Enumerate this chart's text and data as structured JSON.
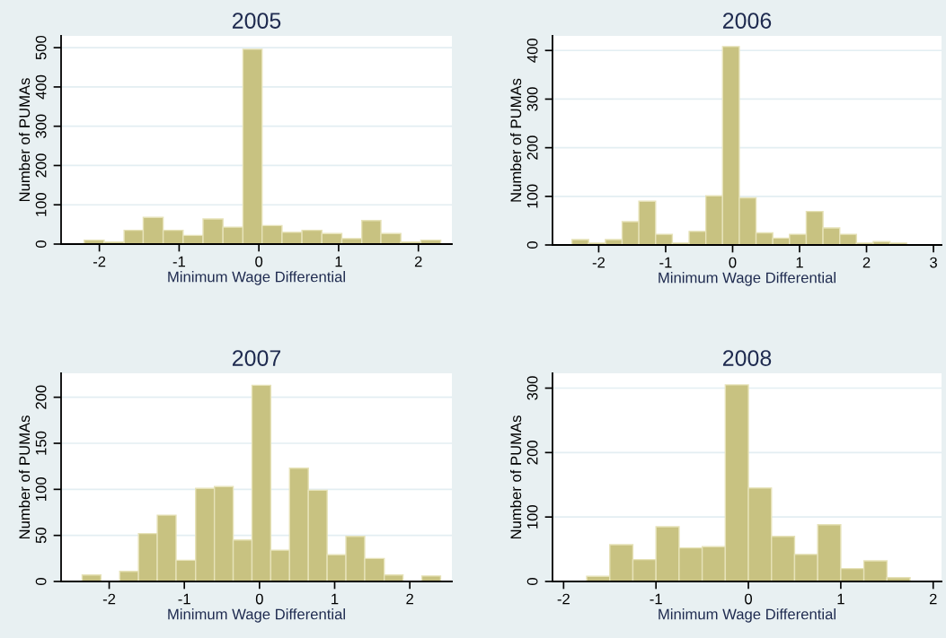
{
  "chart_data": [
    {
      "type": "histogram",
      "title": "2005",
      "xlabel": "Minimum Wage Differential",
      "ylabel": "Number of PUMAs",
      "color": "#c8c281",
      "grid": "y",
      "bins": [
        -2.19,
        -1.94,
        -1.69,
        -1.45,
        -1.2,
        -0.95,
        -0.7,
        -0.45,
        -0.2,
        0.04,
        0.29,
        0.54,
        0.79,
        1.04,
        1.29,
        1.53,
        1.78,
        2.03,
        2.28
      ],
      "values": [
        10,
        5,
        35,
        68,
        35,
        22,
        64,
        43,
        496,
        47,
        30,
        35,
        27,
        14,
        60,
        27,
        5,
        10
      ],
      "xlim": [
        -2.48,
        2.42
      ],
      "ylim": [
        0,
        530
      ],
      "xticks": [
        -2,
        -1,
        0,
        1,
        2
      ],
      "yticks": [
        0,
        100,
        200,
        300,
        400,
        500
      ]
    },
    {
      "type": "histogram",
      "title": "2006",
      "xlabel": "Minimum Wage Differential",
      "ylabel": "Number of PUMAs",
      "color": "#c8c281",
      "grid": "y",
      "bins": [
        -2.4,
        -2.15,
        -1.9,
        -1.65,
        -1.4,
        -1.15,
        -0.9,
        -0.65,
        -0.4,
        -0.15,
        0.1,
        0.35,
        0.6,
        0.85,
        1.1,
        1.35,
        1.6,
        1.85,
        2.1,
        2.35,
        2.6
      ],
      "values": [
        11,
        4,
        11,
        48,
        90,
        22,
        4,
        28,
        101,
        408,
        97,
        25,
        14,
        22,
        69,
        35,
        22,
        4,
        7,
        4
      ],
      "xlim": [
        -2.69,
        3.12
      ],
      "ylim": [
        0,
        430
      ],
      "xticks": [
        -2,
        -1,
        0,
        1,
        2,
        3
      ],
      "yticks": [
        0,
        100,
        200,
        300,
        400
      ]
    },
    {
      "type": "histogram",
      "title": "2007",
      "xlabel": "Minimum Wage Differential",
      "ylabel": "Number of PUMAs",
      "color": "#c8c281",
      "grid": "y",
      "bins": [
        -2.36,
        -2.11,
        -1.86,
        -1.61,
        -1.36,
        -1.11,
        -0.85,
        -0.6,
        -0.35,
        -0.1,
        0.15,
        0.4,
        0.65,
        0.9,
        1.15,
        1.4,
        1.66,
        1.91,
        2.16,
        2.41
      ],
      "values": [
        7,
        0,
        11,
        52,
        72,
        23,
        101,
        103,
        45,
        213,
        34,
        123,
        99,
        29,
        49,
        25,
        7,
        0,
        6
      ],
      "xlim": [
        -2.64,
        2.56
      ],
      "ylim": [
        0,
        226
      ],
      "xticks": [
        -2,
        -1,
        0,
        1,
        2
      ],
      "yticks": [
        0,
        50,
        100,
        150,
        200
      ]
    },
    {
      "type": "histogram",
      "title": "2008",
      "xlabel": "Minimum Wage Differential",
      "ylabel": "Number of PUMAs",
      "color": "#c8c281",
      "grid": "y",
      "bins": [
        -1.75,
        -1.5,
        -1.25,
        -1.0,
        -0.75,
        -0.5,
        -0.25,
        0,
        0.25,
        0.5,
        0.75,
        1.0,
        1.25,
        1.5,
        1.75
      ],
      "values": [
        8,
        57,
        34,
        85,
        52,
        54,
        305,
        145,
        70,
        42,
        88,
        20,
        32,
        6
      ],
      "xlim": [
        -2.12,
        2.09
      ],
      "ylim": [
        0,
        323
      ],
      "xticks": [
        -2,
        -1,
        0,
        1,
        2
      ],
      "yticks": [
        0,
        100,
        200,
        300
      ]
    }
  ]
}
